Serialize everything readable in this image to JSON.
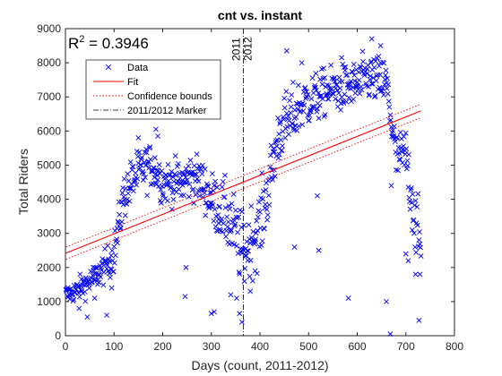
{
  "chart_data": {
    "type": "scatter",
    "title": "cnt vs. instant",
    "xlabel": "Days (count, 2011-2012)",
    "ylabel": "Total Riders",
    "xlim": [
      0,
      800
    ],
    "ylim": [
      0,
      9000
    ],
    "xticks": [
      0,
      100,
      200,
      300,
      400,
      500,
      600,
      700,
      800
    ],
    "yticks": [
      0,
      1000,
      2000,
      3000,
      4000,
      5000,
      6000,
      7000,
      8000,
      9000
    ],
    "grid": false,
    "legend_position": "top-left",
    "annotation": {
      "prefix": "R",
      "superscript": "2",
      "suffix": " = 0.3946"
    },
    "marker": {
      "x": 366,
      "labels": [
        "2011",
        "2012"
      ]
    },
    "fit": {
      "x": [
        1,
        731
      ],
      "y": [
        2420,
        6590
      ]
    },
    "confidence_upper": {
      "x": [
        1,
        731
      ],
      "y": [
        2600,
        6790
      ]
    },
    "confidence_lower": {
      "x": [
        1,
        731
      ],
      "y": [
        2240,
        6390
      ]
    },
    "series": [
      {
        "name": "Data",
        "style": "x",
        "color": "#0000ff",
        "anchors": {
          "x": [
            1,
            20,
            40,
            60,
            80,
            100,
            120,
            140,
            160,
            180,
            200,
            220,
            240,
            260,
            280,
            300,
            320,
            340,
            366,
            380,
            400,
            420,
            440,
            460,
            480,
            500,
            520,
            540,
            560,
            580,
            600,
            620,
            640,
            660,
            680,
            700,
            720,
            731
          ],
          "y": [
            1200,
            1300,
            1500,
            1700,
            2000,
            2400,
            4100,
            4600,
            4900,
            5000,
            4500,
            4500,
            4500,
            4700,
            4500,
            4000,
            3700,
            3300,
            2400,
            2800,
            3200,
            4500,
            6000,
            6300,
            6700,
            6900,
            7000,
            7200,
            7200,
            7300,
            7300,
            7600,
            7500,
            7400,
            5200,
            5300,
            3300,
            2500
          ]
        },
        "spread": [
          280,
          300,
          350,
          380,
          420,
          520,
          620,
          620,
          620,
          580,
          580,
          560,
          620,
          620,
          620,
          720,
          820,
          950,
          1000,
          950,
          950,
          900,
          820,
          820,
          720,
          720,
          650,
          620,
          620,
          620,
          650,
          650,
          650,
          700,
          700,
          750,
          900,
          900
        ],
        "count": 731,
        "outliers": [
          [
            28,
            800
          ],
          [
            45,
            550
          ],
          [
            60,
            1100
          ],
          [
            85,
            600
          ],
          [
            95,
            1400
          ],
          [
            150,
            5800
          ],
          [
            186,
            6050
          ],
          [
            190,
            5850
          ],
          [
            246,
            1150
          ],
          [
            248,
            2000
          ],
          [
            300,
            650
          ],
          [
            306,
            700
          ],
          [
            315,
            3300
          ],
          [
            340,
            1200
          ],
          [
            352,
            1100
          ],
          [
            358,
            650
          ],
          [
            363,
            400
          ],
          [
            380,
            1300
          ],
          [
            390,
            1900
          ],
          [
            455,
            8350
          ],
          [
            471,
            2600
          ],
          [
            486,
            8000
          ],
          [
            518,
            4100
          ],
          [
            521,
            2500
          ],
          [
            568,
            8150
          ],
          [
            582,
            1100
          ],
          [
            598,
            7800
          ],
          [
            630,
            8700
          ],
          [
            648,
            8500
          ],
          [
            660,
            1000
          ],
          [
            668,
            50
          ],
          [
            670,
            4400
          ],
          [
            700,
            2400
          ],
          [
            705,
            2200
          ],
          [
            720,
            1800
          ],
          [
            727,
            450
          ],
          [
            729,
            1800
          ]
        ]
      }
    ],
    "legend": [
      {
        "label": "Data",
        "style": "marker-x",
        "color": "#0000ff"
      },
      {
        "label": "Fit",
        "style": "solid",
        "color": "#ff0000"
      },
      {
        "label": "Confidence bounds",
        "style": "dotted",
        "color": "#ff0000"
      },
      {
        "label": "2011/2012 Marker",
        "style": "dashdot",
        "color": "#000000"
      }
    ]
  }
}
